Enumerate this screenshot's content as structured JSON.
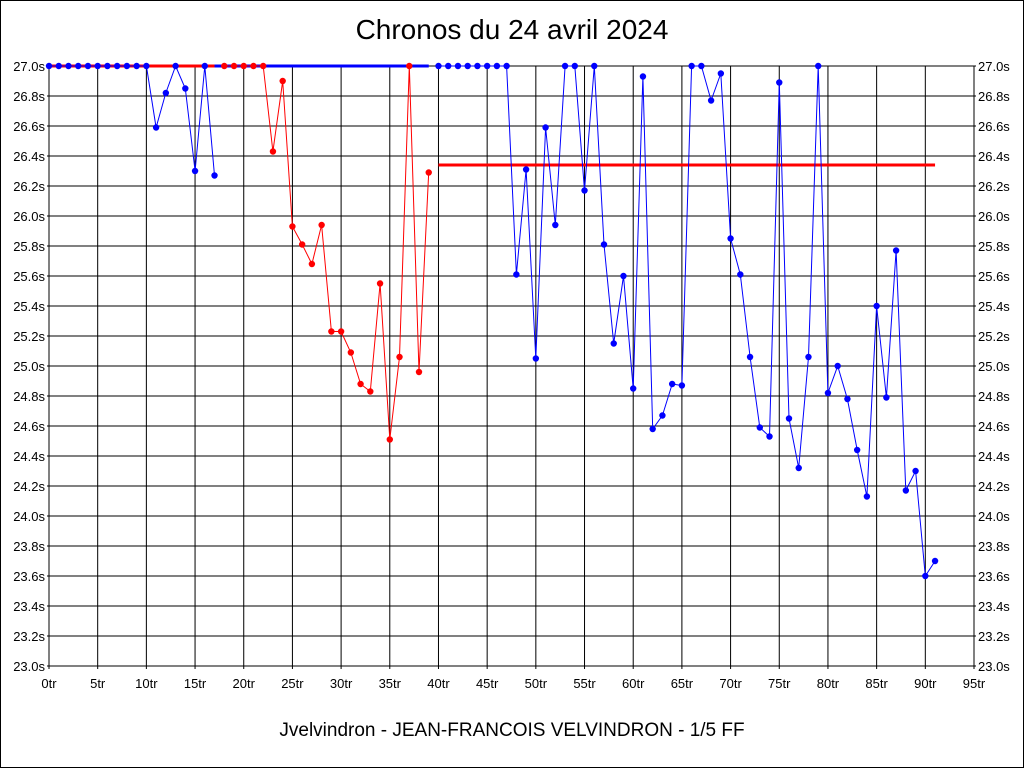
{
  "title": "Chronos du 24 avril 2024",
  "footer": "Jvelvindron - JEAN-FRANCOIS VELVINDRON - 1/5 FF",
  "chart_data": {
    "type": "line",
    "xlim": [
      0,
      95
    ],
    "ylim": [
      23.0,
      27.0
    ],
    "x_ticks": [
      0,
      5,
      10,
      15,
      20,
      25,
      30,
      35,
      40,
      45,
      50,
      55,
      60,
      65,
      70,
      75,
      80,
      85,
      90,
      95
    ],
    "x_tick_suffix": "tr",
    "y_ticks": [
      23.0,
      23.2,
      23.4,
      23.6,
      23.8,
      24.0,
      24.2,
      24.4,
      24.6,
      24.8,
      25.0,
      25.2,
      25.4,
      25.6,
      25.8,
      26.0,
      26.2,
      26.4,
      26.6,
      26.8,
      27.0
    ],
    "y_tick_suffix": "s",
    "grid": true,
    "series": [
      {
        "color": "#0000ff",
        "x": [
          0,
          1,
          2,
          3,
          4,
          5,
          6,
          7,
          8,
          9,
          10,
          11,
          12,
          13,
          14,
          15,
          16,
          17
        ],
        "y": [
          27.0,
          27.0,
          27.0,
          27.0,
          27.0,
          27.0,
          27.0,
          27.0,
          27.0,
          27.0,
          27.0,
          26.59,
          26.82,
          27.0,
          26.85,
          26.3,
          27.0,
          26.27
        ]
      },
      {
        "color": "#ff0000",
        "x": [
          18,
          19,
          20,
          21,
          22,
          23,
          24,
          25,
          26,
          27,
          28,
          29,
          30,
          31,
          32,
          33,
          34,
          35,
          36,
          37,
          38,
          39
        ],
        "y": [
          27.0,
          27.0,
          27.0,
          27.0,
          27.0,
          26.43,
          26.9,
          25.93,
          25.81,
          25.68,
          25.94,
          25.23,
          25.23,
          25.09,
          24.88,
          24.83,
          25.55,
          24.51,
          25.06,
          27.0,
          24.96,
          26.29
        ]
      },
      {
        "color": "#0000ff",
        "x": [
          40,
          41,
          42,
          43,
          44,
          45,
          46,
          47,
          48,
          49,
          50,
          51,
          52,
          53,
          54,
          55,
          56,
          57,
          58,
          59,
          60,
          61,
          62,
          63,
          64,
          65,
          66,
          67,
          68,
          69,
          70,
          71,
          72,
          73,
          74,
          75,
          76,
          77,
          78,
          79,
          80,
          81,
          82,
          83,
          84,
          85,
          86,
          87,
          88,
          89,
          90,
          91
        ],
        "y": [
          27.0,
          27.0,
          27.0,
          27.0,
          27.0,
          27.0,
          27.0,
          27.0,
          25.61,
          26.31,
          25.05,
          26.59,
          25.94,
          27.0,
          27.0,
          26.17,
          27.0,
          25.81,
          25.15,
          25.6,
          24.85,
          26.93,
          24.58,
          24.67,
          24.88,
          24.87,
          27.0,
          27.0,
          26.77,
          26.95,
          25.85,
          25.61,
          25.06,
          24.59,
          24.53,
          26.89,
          24.65,
          24.32,
          25.06,
          27.0,
          24.82,
          25.0,
          24.78,
          24.44,
          24.13,
          25.4,
          24.79,
          25.77,
          24.17,
          24.3,
          23.6,
          23.7
        ]
      }
    ],
    "reference_lines": [
      {
        "color": "#ff0000",
        "x": [
          0,
          17
        ],
        "y": 27.0
      },
      {
        "color": "#0000ff",
        "x": [
          17,
          39
        ],
        "y": 27.0
      },
      {
        "color": "#ff0000",
        "x": [
          40,
          91
        ],
        "y": 26.34
      }
    ]
  }
}
